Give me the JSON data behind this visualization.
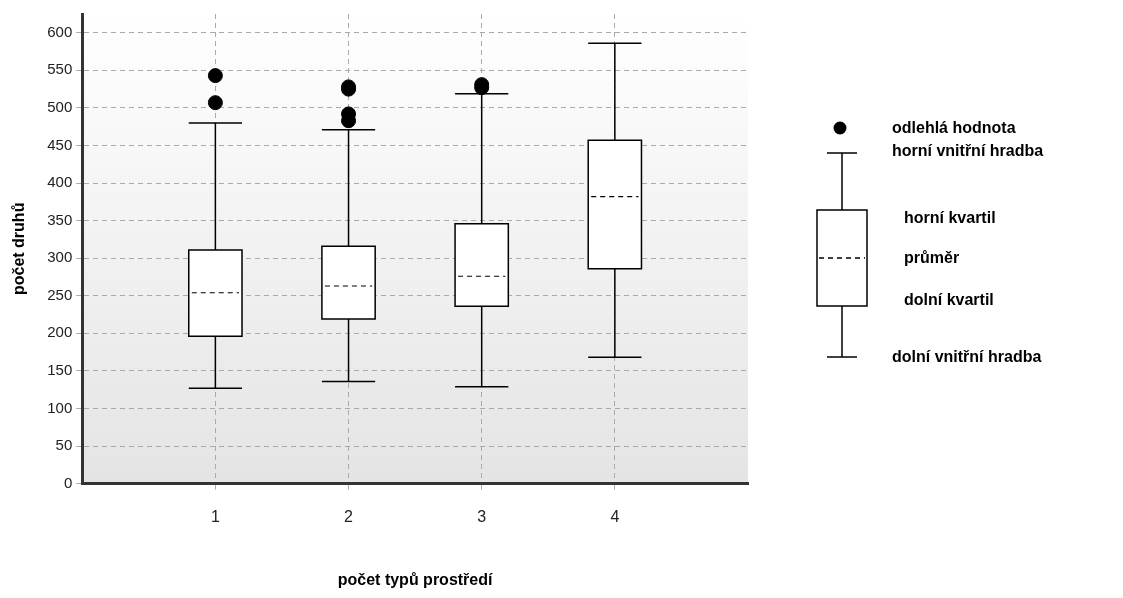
{
  "chart_data": {
    "type": "box",
    "xlabel": "počet typů prostředí",
    "ylabel": "počet druhů",
    "x": [
      1,
      2,
      3,
      4
    ],
    "xlim": [
      0,
      5
    ],
    "xticks": [
      1,
      2,
      3,
      4
    ],
    "ylim": [
      0,
      625
    ],
    "yticks": [
      0,
      50,
      100,
      150,
      200,
      250,
      300,
      350,
      400,
      450,
      500,
      550,
      600
    ],
    "grid": true,
    "boxes": [
      {
        "low": 127,
        "q1": 196,
        "mean": 254,
        "q3": 311,
        "high": 480,
        "outliers": [
          507,
          543
        ]
      },
      {
        "low": 136,
        "q1": 219,
        "mean": 263,
        "q3": 316,
        "high": 471,
        "outliers": [
          483,
          492,
          525,
          528
        ]
      },
      {
        "low": 129,
        "q1": 236,
        "mean": 276,
        "q3": 346,
        "high": 519,
        "outliers": [
          527,
          531
        ]
      },
      {
        "low": 168,
        "q1": 286,
        "mean": 382,
        "q3": 457,
        "high": 586
      }
    ],
    "annotations": [
      "odlehlá hodnota",
      "horní vnitřní hradba",
      "horní kvartil",
      "průměr",
      "dolní kvartil",
      "dolní vnitřní hradba"
    ]
  }
}
